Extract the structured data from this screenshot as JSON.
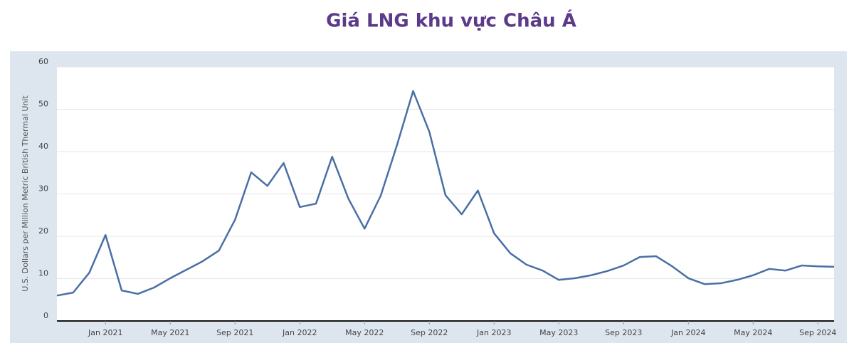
{
  "chart_data": {
    "type": "line",
    "title": "Giá LNG khu vực Châu Á",
    "y_label": "U.S. Dollars per Million Metric British Thermal Unit",
    "x": [
      "2020-10",
      "2020-11",
      "2020-12",
      "2021-01",
      "2021-02",
      "2021-03",
      "2021-04",
      "2021-05",
      "2021-06",
      "2021-07",
      "2021-08",
      "2021-09",
      "2021-10",
      "2021-11",
      "2021-12",
      "2022-01",
      "2022-02",
      "2022-03",
      "2022-04",
      "2022-05",
      "2022-06",
      "2022-07",
      "2022-08",
      "2022-09",
      "2022-10",
      "2022-11",
      "2022-12",
      "2023-01",
      "2023-02",
      "2023-03",
      "2023-04",
      "2023-05",
      "2023-06",
      "2023-07",
      "2023-08",
      "2023-09",
      "2023-10",
      "2023-11",
      "2023-12",
      "2024-01",
      "2024-02",
      "2024-03",
      "2024-04",
      "2024-05",
      "2024-06",
      "2024-07",
      "2024-08",
      "2024-09",
      "2024-10"
    ],
    "series": [
      {
        "color": "#4a6fa5",
        "values": [
          6.0,
          6.7,
          11.4,
          20.3,
          7.2,
          6.4,
          7.9,
          10.1,
          12.1,
          14.1,
          16.6,
          23.9,
          35.1,
          31.9,
          37.3,
          26.9,
          27.7,
          38.8,
          28.9,
          21.8,
          29.6,
          41.5,
          54.3,
          44.7,
          29.7,
          25.2,
          30.8,
          20.7,
          16.0,
          13.3,
          11.9,
          9.7,
          10.1,
          10.8,
          11.8,
          13.1,
          15.1,
          15.3,
          12.9,
          10.1,
          8.7,
          8.9,
          9.7,
          10.8,
          12.3,
          11.9,
          13.1,
          12.9,
          12.8
        ]
      }
    ],
    "xticks": [
      {
        "value": "2021-01",
        "label": "Jan 2021"
      },
      {
        "value": "2021-05",
        "label": "May 2021"
      },
      {
        "value": "2021-09",
        "label": "Sep 2021"
      },
      {
        "value": "2022-01",
        "label": "Jan 2022"
      },
      {
        "value": "2022-05",
        "label": "May 2022"
      },
      {
        "value": "2022-09",
        "label": "Sep 2022"
      },
      {
        "value": "2023-01",
        "label": "Jan 2023"
      },
      {
        "value": "2023-05",
        "label": "May 2023"
      },
      {
        "value": "2023-09",
        "label": "Sep 2023"
      },
      {
        "value": "2024-01",
        "label": "Jan 2024"
      },
      {
        "value": "2024-05",
        "label": "May 2024"
      },
      {
        "value": "2024-09",
        "label": "Sep 2024"
      }
    ],
    "ylim": [
      0,
      60
    ],
    "yticks": [
      0,
      10,
      20,
      30,
      40,
      50,
      60
    ],
    "grid": true
  }
}
